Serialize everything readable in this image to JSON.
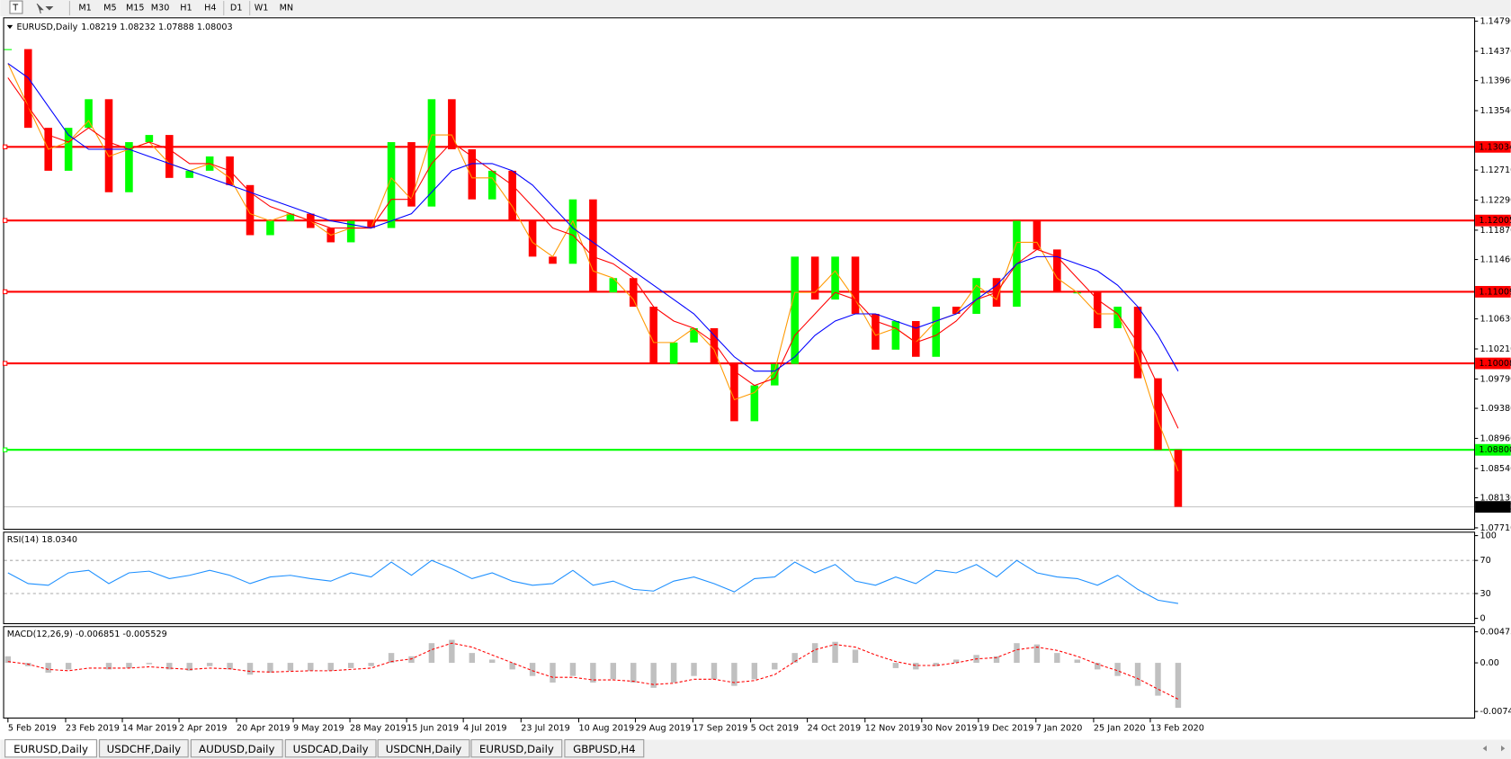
{
  "toolbar": {
    "timeframes": [
      "M1",
      "M5",
      "M15",
      "M30",
      "H1",
      "H4",
      "D1",
      "W1",
      "MN"
    ]
  },
  "tabs": [
    {
      "label": "EURUSD,Daily",
      "active": true
    },
    {
      "label": "USDCHF,Daily"
    },
    {
      "label": "AUDUSD,Daily"
    },
    {
      "label": "USDCAD,Daily"
    },
    {
      "label": "USDCNH,Daily"
    },
    {
      "label": "EURUSD,Daily"
    },
    {
      "label": "GBPUSD,H4"
    }
  ],
  "chart_data": [
    {
      "type": "candlestick",
      "title": "EURUSD,Daily",
      "subtitle": "1.08219 1.08232 1.07888 1.08003",
      "up_color": "#00ff00",
      "down_color": "#ff0000",
      "values": [
        1.144,
        1.133,
        1.127,
        1.133,
        1.137,
        1.124,
        1.131,
        1.132,
        1.126,
        1.127,
        1.129,
        1.125,
        1.118,
        1.12,
        1.121,
        1.119,
        1.117,
        1.12,
        1.119,
        1.131,
        1.122,
        1.137,
        1.13,
        1.123,
        1.127,
        1.12,
        1.115,
        1.114,
        1.123,
        1.11,
        1.112,
        1.108,
        1.1,
        1.103,
        1.105,
        1.1,
        1.092,
        1.097,
        1.1,
        1.115,
        1.109,
        1.115,
        1.107,
        1.102,
        1.106,
        1.101,
        1.108,
        1.107,
        1.112,
        1.108,
        1.12,
        1.116,
        1.11,
        1.11,
        1.105,
        1.108,
        1.098,
        1.088,
        1.08003
      ],
      "lines": [
        {
          "color": "#ff9900",
          "values": [
            1.142,
            1.136,
            1.13,
            1.131,
            1.134,
            1.129,
            1.13,
            1.131,
            1.128,
            1.127,
            1.128,
            1.126,
            1.121,
            1.12,
            1.121,
            1.12,
            1.118,
            1.119,
            1.119,
            1.126,
            1.123,
            1.132,
            1.132,
            1.126,
            1.126,
            1.122,
            1.117,
            1.115,
            1.12,
            1.113,
            1.112,
            1.109,
            1.103,
            1.103,
            1.105,
            1.102,
            1.095,
            1.096,
            1.099,
            1.11,
            1.11,
            1.113,
            1.109,
            1.104,
            1.105,
            1.103,
            1.106,
            1.107,
            1.111,
            1.109,
            1.117,
            1.117,
            1.112,
            1.11,
            1.107,
            1.107,
            1.101,
            1.092,
            1.085
          ]
        },
        {
          "color": "#ff0000",
          "values": [
            1.14,
            1.136,
            1.132,
            1.131,
            1.133,
            1.131,
            1.13,
            1.131,
            1.13,
            1.128,
            1.128,
            1.127,
            1.124,
            1.122,
            1.121,
            1.12,
            1.119,
            1.119,
            1.119,
            1.123,
            1.123,
            1.128,
            1.131,
            1.129,
            1.127,
            1.125,
            1.122,
            1.119,
            1.118,
            1.115,
            1.114,
            1.112,
            1.108,
            1.106,
            1.105,
            1.103,
            1.099,
            1.097,
            1.098,
            1.104,
            1.107,
            1.11,
            1.109,
            1.106,
            1.105,
            1.103,
            1.104,
            1.106,
            1.109,
            1.11,
            1.114,
            1.116,
            1.115,
            1.112,
            1.109,
            1.107,
            1.103,
            1.097,
            1.091
          ]
        },
        {
          "color": "#0000ff",
          "values": [
            1.142,
            1.14,
            1.136,
            1.132,
            1.13,
            1.13,
            1.13,
            1.129,
            1.128,
            1.127,
            1.126,
            1.125,
            1.124,
            1.123,
            1.122,
            1.121,
            1.12,
            1.1195,
            1.119,
            1.12,
            1.121,
            1.124,
            1.127,
            1.128,
            1.128,
            1.127,
            1.125,
            1.122,
            1.119,
            1.117,
            1.115,
            1.113,
            1.111,
            1.109,
            1.107,
            1.104,
            1.101,
            1.099,
            1.099,
            1.101,
            1.104,
            1.106,
            1.107,
            1.107,
            1.106,
            1.105,
            1.106,
            1.107,
            1.109,
            1.111,
            1.114,
            1.115,
            1.115,
            1.114,
            1.113,
            1.111,
            1.108,
            1.104,
            1.099
          ]
        }
      ],
      "levels": [
        {
          "value": 1.13034,
          "color": "#ff0000"
        },
        {
          "value": 1.12005,
          "color": "#ff0000"
        },
        {
          "value": 1.11009,
          "color": "#ff0000"
        },
        {
          "value": 1.10008,
          "color": "#ff0000"
        },
        {
          "value": 1.088,
          "label": "1.08800",
          "color": "#00ff00"
        }
      ],
      "current_price": 1.08003,
      "xlim": [
        -0.19,
        72.67
      ],
      "xticks": [
        {
          "value": 0,
          "label": "5 Feb 2019"
        },
        {
          "value": 2.86,
          "label": "23 Feb 2019"
        },
        {
          "value": 5.67,
          "label": "14 Mar 2019"
        },
        {
          "value": 8.48,
          "label": "2 Apr 2019"
        },
        {
          "value": 11.33,
          "label": "20 Apr 2019"
        },
        {
          "value": 14.14,
          "label": "9 May 2019"
        },
        {
          "value": 16.95,
          "label": "28 May 2019"
        },
        {
          "value": 19.76,
          "label": "15 Jun 2019"
        },
        {
          "value": 22.57,
          "label": "4 Jul 2019"
        },
        {
          "value": 25.43,
          "label": "23 Jul 2019"
        },
        {
          "value": 28.29,
          "label": "10 Aug 2019"
        },
        {
          "value": 31.1,
          "label": "29 Aug 2019"
        },
        {
          "value": 33.95,
          "label": "17 Sep 2019"
        },
        {
          "value": 36.81,
          "label": "5 Oct 2019"
        },
        {
          "value": 39.62,
          "label": "24 Oct 2019"
        },
        {
          "value": 42.48,
          "label": "12 Nov 2019"
        },
        {
          "value": 45.29,
          "label": "30 Nov 2019"
        },
        {
          "value": 48.1,
          "label": "19 Dec 2019"
        },
        {
          "value": 50.95,
          "label": "7 Jan 2020"
        },
        {
          "value": 53.81,
          "label": "25 Jan 2020"
        },
        {
          "value": 56.62,
          "label": "13 Feb 2020"
        }
      ],
      "ylim": [
        1.07683,
        1.14844
      ],
      "yticks": [
        {
          "value": 1.1479,
          "label": "1.14790"
        },
        {
          "value": 1.1437,
          "label": "1.14370"
        },
        {
          "value": 1.1396,
          "label": "1.13960"
        },
        {
          "value": 1.1354,
          "label": "1.13540"
        },
        {
          "value": 1.1271,
          "label": "1.12710"
        },
        {
          "value": 1.1229,
          "label": "1.12290"
        },
        {
          "value": 1.1187,
          "label": "1.11870"
        },
        {
          "value": 1.1146,
          "label": "1.11460"
        },
        {
          "value": 1.1063,
          "label": "1.10630"
        },
        {
          "value": 1.1021,
          "label": "1.10210"
        },
        {
          "value": 1.0979,
          "label": "1.09790"
        },
        {
          "value": 1.0938,
          "label": "1.09380"
        },
        {
          "value": 1.0896,
          "label": "1.08960"
        },
        {
          "value": 1.0854,
          "label": "1.08540"
        },
        {
          "value": 1.0813,
          "label": "1.08130"
        },
        {
          "value": 1.0771,
          "label": "1.07710"
        }
      ]
    },
    {
      "type": "line",
      "title": "RSI(14) 18.0340",
      "color": "#1e90ff",
      "values": [
        55,
        42,
        40,
        55,
        58,
        42,
        55,
        57,
        48,
        52,
        58,
        52,
        42,
        50,
        52,
        48,
        45,
        55,
        50,
        68,
        52,
        70,
        60,
        48,
        55,
        45,
        40,
        42,
        58,
        40,
        45,
        35,
        33,
        45,
        50,
        42,
        32,
        48,
        50,
        68,
        55,
        65,
        45,
        40,
        50,
        42,
        58,
        55,
        65,
        50,
        70,
        55,
        50,
        48,
        40,
        52,
        35,
        22,
        18
      ],
      "levels": [
        70,
        30
      ],
      "ylim": [
        -7,
        104.7
      ],
      "yticks": [
        100,
        70,
        30,
        0
      ]
    },
    {
      "type": "macd",
      "title": "MACD(12,26,9) -0.006851 -0.005529",
      "color": "#c0c0c0",
      "signal_color": "#ff0000",
      "values": [
        0.001,
        -0.0005,
        -0.0015,
        -0.001,
        0.0,
        -0.001,
        -0.0008,
        -0.0002,
        -0.001,
        -0.0012,
        -0.0005,
        -0.001,
        -0.0018,
        -0.0015,
        -0.0012,
        -0.0012,
        -0.0012,
        -0.0008,
        -0.0005,
        0.0015,
        0.001,
        0.003,
        0.0035,
        0.0015,
        0.0005,
        -0.001,
        -0.002,
        -0.003,
        -0.002,
        -0.003,
        -0.0025,
        -0.003,
        -0.0038,
        -0.003,
        -0.002,
        -0.0025,
        -0.0035,
        -0.0025,
        -0.001,
        0.0015,
        0.003,
        0.0032,
        0.002,
        0.0,
        -0.0008,
        -0.001,
        -0.0005,
        0.0005,
        0.0012,
        0.001,
        0.003,
        0.0028,
        0.0015,
        0.0005,
        -0.001,
        -0.002,
        -0.0035,
        -0.005,
        -0.006851
      ],
      "signal": [
        0.0002,
        -0.0002,
        -0.001,
        -0.0012,
        -0.0008,
        -0.0008,
        -0.0008,
        -0.0006,
        -0.0008,
        -0.001,
        -0.0008,
        -0.0009,
        -0.0013,
        -0.0014,
        -0.0013,
        -0.0012,
        -0.0012,
        -0.001,
        -0.0008,
        0.0002,
        0.0006,
        0.002,
        0.003,
        0.0024,
        0.0012,
        0.0,
        -0.0012,
        -0.0022,
        -0.0022,
        -0.0026,
        -0.0026,
        -0.0028,
        -0.0033,
        -0.0031,
        -0.0025,
        -0.0025,
        -0.003,
        -0.0027,
        -0.0018,
        0.0002,
        0.002,
        0.0028,
        0.0024,
        0.0012,
        0.0002,
        -0.0004,
        -0.0004,
        0.0,
        0.0006,
        0.0008,
        0.002,
        0.0024,
        0.0019,
        0.001,
        -0.0002,
        -0.0012,
        -0.0024,
        -0.004,
        -0.005529
      ],
      "ylim": [
        -0.00848,
        0.0056
      ],
      "yticks": [
        0.00473,
        {
          "value": 0,
          "label": "0.00"
        },
        {
          "value": -0.0074,
          "label": "-0.00740"
        }
      ]
    }
  ]
}
